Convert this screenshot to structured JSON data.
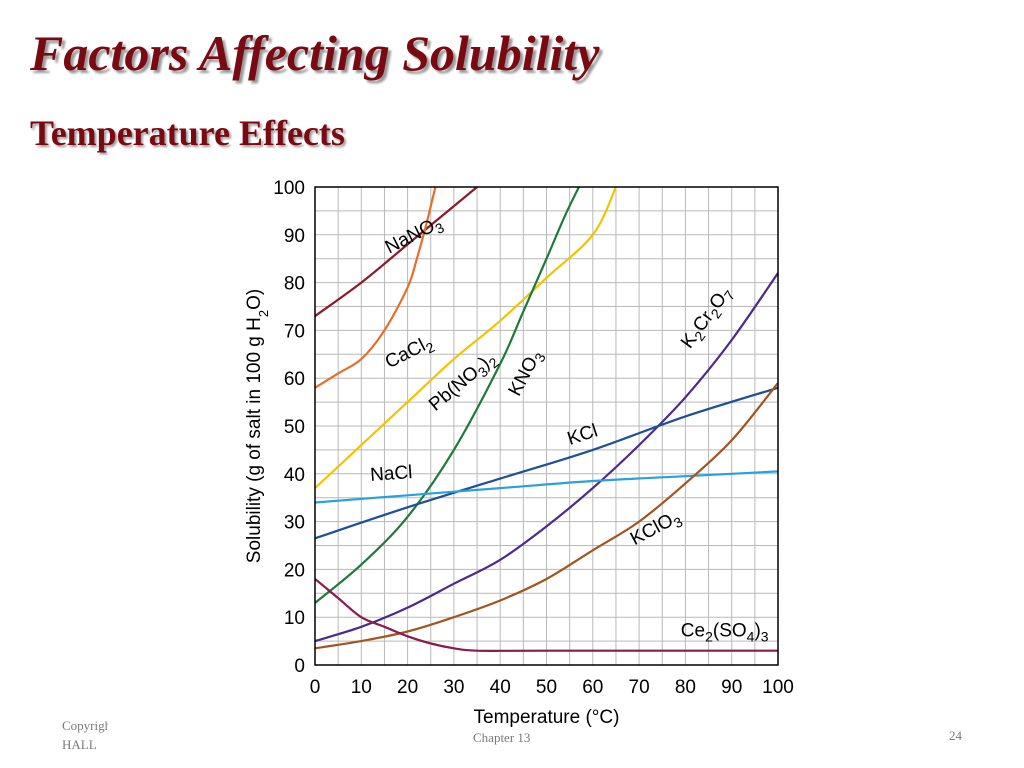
{
  "slide": {
    "title": "Factors Affecting Solubility",
    "subtitle": "Temperature Effects"
  },
  "footer": {
    "left_line1": "Copyright",
    "left_line2": "HALL",
    "center": "Chapter 13",
    "page_number": "24"
  },
  "colors": {
    "title": "#7a0a12",
    "NaNO3": "#8b1a2b",
    "CaCl2": "#e3702a",
    "Pb(NO3)2": "#f0c400",
    "KNO3": "#1f7a3a",
    "K2Cr2O7": "#4a2b8c",
    "KCl": "#1f4f96",
    "NaCl": "#2aa0dc",
    "KClO3": "#a0561e",
    "Ce2(SO4)3": "#8a1a52"
  },
  "chart_data": {
    "type": "line",
    "xlabel": "Temperature (°C)",
    "ylabel": "Solubility (g of salt in 100 g H2O)",
    "xlim": [
      0,
      100
    ],
    "ylim": [
      0,
      100
    ],
    "x_ticks": [
      "0",
      "10",
      "20",
      "30",
      "40",
      "50",
      "60",
      "70",
      "80",
      "90",
      "100"
    ],
    "y_ticks": [
      "0",
      "10",
      "20",
      "30",
      "40",
      "50",
      "60",
      "70",
      "80",
      "90",
      "100"
    ],
    "grid": true,
    "series": [
      {
        "name": "NaNO3",
        "x": [
          0,
          10,
          20,
          30,
          35
        ],
        "y": [
          73,
          80,
          88,
          96,
          100
        ]
      },
      {
        "name": "CaCl2",
        "x": [
          0,
          5,
          10,
          15,
          20,
          22,
          24,
          26
        ],
        "y": [
          58,
          61,
          64,
          70,
          79,
          85,
          92,
          100
        ]
      },
      {
        "name": "Pb(NO3)2",
        "x": [
          0,
          10,
          20,
          30,
          40,
          50,
          60,
          65
        ],
        "y": [
          37,
          46,
          55,
          64,
          72,
          81,
          90,
          100
        ]
      },
      {
        "name": "KNO3",
        "x": [
          0,
          10,
          20,
          30,
          40,
          45,
          50,
          54,
          57
        ],
        "y": [
          13,
          21,
          31,
          45,
          63,
          74,
          85,
          94,
          100
        ]
      },
      {
        "name": "K2Cr2O7",
        "x": [
          0,
          10,
          20,
          30,
          40,
          50,
          60,
          70,
          80,
          90,
          100
        ],
        "y": [
          5,
          8,
          12,
          17,
          22,
          29,
          37,
          46,
          56,
          68,
          82
        ]
      },
      {
        "name": "KCl",
        "x": [
          0,
          20,
          40,
          60,
          80,
          100
        ],
        "y": [
          26.5,
          33,
          39,
          45,
          52,
          58
        ]
      },
      {
        "name": "NaCl",
        "x": [
          0,
          20,
          40,
          60,
          80,
          100
        ],
        "y": [
          34,
          35.5,
          37,
          38.5,
          39.5,
          40.5
        ]
      },
      {
        "name": "KClO3",
        "x": [
          0,
          10,
          20,
          30,
          40,
          50,
          60,
          70,
          80,
          90,
          100
        ],
        "y": [
          3.5,
          5,
          7,
          10,
          13.5,
          18,
          24,
          30,
          38,
          47,
          59
        ]
      },
      {
        "name": "Ce2(SO4)3",
        "x": [
          0,
          5,
          10,
          15,
          20,
          25,
          30,
          35,
          50,
          100
        ],
        "y": [
          18,
          14,
          10,
          8,
          6,
          4.5,
          3.5,
          3,
          3,
          3
        ]
      }
    ],
    "curve_labels": [
      {
        "series": "NaNO3",
        "text": "NaNO",
        "sub": "3",
        "x": 16,
        "y": 86,
        "angle": -27
      },
      {
        "series": "CaCl2",
        "text": "CaCl",
        "sub": "2",
        "x": 16,
        "y": 62,
        "angle": -27
      },
      {
        "series": "Pb(NO3)2",
        "text": "Pb(NO",
        "sub": "3",
        "tail": ")2",
        "x": 26,
        "y": 53,
        "angle": -40
      },
      {
        "series": "KNO3",
        "text": "KNO",
        "sub": "3",
        "x": 44,
        "y": 56,
        "angle": -62
      },
      {
        "series": "K2Cr2O7",
        "text": "K2Cr2O7",
        "x": 81,
        "y": 66,
        "angle": -54
      },
      {
        "series": "KCl",
        "text": "KCl",
        "x": 55,
        "y": 46,
        "angle": -18
      },
      {
        "series": "NaCl",
        "text": "NaCl",
        "x": 12,
        "y": 38.5,
        "angle": -4
      },
      {
        "series": "KClO3",
        "text": "KClO",
        "sub": "3",
        "x": 69,
        "y": 25,
        "angle": -28
      },
      {
        "series": "Ce2(SO4)3",
        "text": "Ce2(SO4)3",
        "x": 79,
        "y": 6,
        "angle": 0
      }
    ]
  }
}
